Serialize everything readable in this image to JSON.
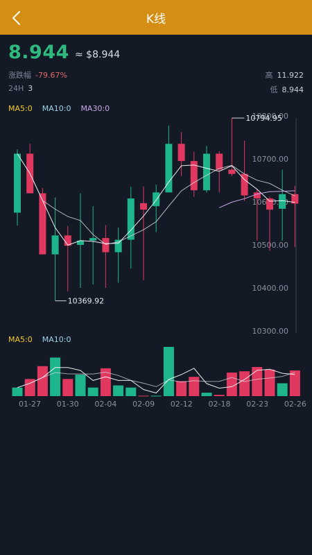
{
  "header": {
    "title": "K线"
  },
  "price": {
    "current": "8.944",
    "usd": "≈ $8.944",
    "change_label": "涨跌幅",
    "change_value": "-79.67%",
    "h24_label": "24H",
    "h24_value": "3",
    "high_label": "高",
    "high_value": "11.922",
    "low_label": "低",
    "low_value": "8.944"
  },
  "colors": {
    "header": "#d58e14",
    "up": "#1fb58c",
    "down": "#e0385f",
    "bg": "#141a25",
    "price": "#2fb97e"
  },
  "legend_main": [
    {
      "label": "MA5:0",
      "color": "#f3c928"
    },
    {
      "label": "MA10:0",
      "color": "#9fd3e6"
    },
    {
      "label": "MA30:0",
      "color": "#c7a8e6"
    }
  ],
  "legend_volume": [
    {
      "label": "MA5:0",
      "color": "#f3c928"
    },
    {
      "label": "MA10:0",
      "color": "#9fd3e6"
    }
  ],
  "chart_data": {
    "type": "candlestick",
    "y_ticks": [
      "10800.00",
      "10700.00",
      "10600.00",
      "10500.00",
      "10400.00",
      "10300.00"
    ],
    "ylim": [
      10300,
      10800
    ],
    "x_labels": [
      "01-27",
      "01-30",
      "02-04",
      "02-09",
      "02-12",
      "02-18",
      "02-23",
      "02-26"
    ],
    "max_label": "10794.95",
    "min_label": "10369.92",
    "candles": [
      {
        "o": 10575,
        "c": 10712,
        "h": 10722,
        "l": 10545,
        "v": 2
      },
      {
        "o": 10712,
        "c": 10620,
        "h": 10735,
        "l": 10620,
        "v": 4
      },
      {
        "o": 10620,
        "c": 10478,
        "h": 10632,
        "l": 10478,
        "v": 7
      },
      {
        "o": 10478,
        "c": 10522,
        "h": 10610,
        "l": 10369.92,
        "v": 9
      },
      {
        "o": 10522,
        "c": 10498,
        "h": 10544,
        "l": 10392,
        "v": 4
      },
      {
        "o": 10500,
        "c": 10510,
        "h": 10620,
        "l": 10400,
        "v": 5
      },
      {
        "o": 10510,
        "c": 10516,
        "h": 10590,
        "l": 10408,
        "v": 2
      },
      {
        "o": 10516,
        "c": 10483,
        "h": 10546,
        "l": 10400,
        "v": 6.5
      },
      {
        "o": 10483,
        "c": 10512,
        "h": 10540,
        "l": 10412,
        "v": 2.5
      },
      {
        "o": 10512,
        "c": 10608,
        "h": 10635,
        "l": 10445,
        "v": 2
      },
      {
        "o": 10597,
        "c": 10582,
        "h": 10636,
        "l": 10418,
        "v": 0.1
      },
      {
        "o": 10590,
        "c": 10622,
        "h": 10640,
        "l": 10530,
        "v": 0.1
      },
      {
        "o": 10622,
        "c": 10735,
        "h": 10777,
        "l": 10622,
        "v": 11.5
      },
      {
        "o": 10735,
        "c": 10695,
        "h": 10762,
        "l": 10660,
        "v": 3.5
      },
      {
        "o": 10695,
        "c": 10627,
        "h": 10717,
        "l": 10612,
        "v": 4.5
      },
      {
        "o": 10627,
        "c": 10712,
        "h": 10730,
        "l": 10622,
        "v": 0.8
      },
      {
        "o": 10712,
        "c": 10675,
        "h": 10718,
        "l": 10622,
        "v": 0.3
      },
      {
        "o": 10675,
        "c": 10665,
        "h": 10794.95,
        "l": 10660,
        "v": 5.5
      },
      {
        "o": 10665,
        "c": 10615,
        "h": 10742,
        "l": 10602,
        "v": 5.8
      },
      {
        "o": 10622,
        "c": 10608,
        "h": 10630,
        "l": 10510,
        "v": 6.8
      },
      {
        "o": 10608,
        "c": 10582,
        "h": 10612,
        "l": 10486,
        "v": 6.2
      },
      {
        "o": 10584,
        "c": 10618,
        "h": 10675,
        "l": 10510,
        "v": 3
      },
      {
        "o": 10618,
        "c": 10596,
        "h": 10637,
        "l": 10495,
        "v": 6
      }
    ]
  }
}
